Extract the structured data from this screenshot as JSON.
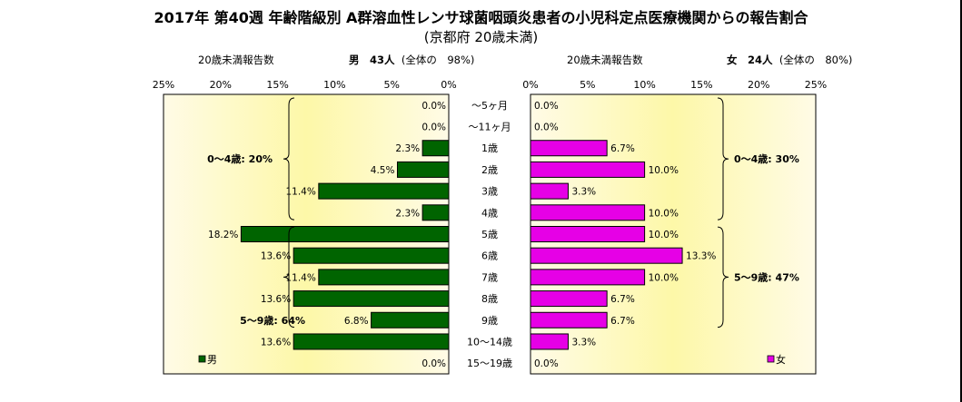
{
  "title": "2017年 第40週 年齢階級別 A群溶血性レンサ球菌咽頭炎患者の小児科定点医療機関からの報告割合",
  "subtitle": "(京都府 20歳未満)",
  "male_header": {
    "report_label": "20歳未満報告数",
    "summary_bold": "男　43人",
    "summary_note": "(全体の　98%)"
  },
  "female_header": {
    "report_label": "20歳未満報告数",
    "summary_bold": "女　24人",
    "summary_note": "(全体の　80%)"
  },
  "colors": {
    "male": "#006400",
    "female": "#e600e6",
    "plot_edge": "#fffbe6",
    "plot_center": "#fdf8a8"
  },
  "chart_data": [
    {
      "type": "bar",
      "orientation": "horizontal",
      "direction": "right-to-left",
      "categories": [
        "～5ヶ月",
        "～11ヶ月",
        "1歳",
        "2歳",
        "3歳",
        "4歳",
        "5歳",
        "6歳",
        "7歳",
        "8歳",
        "9歳",
        "10～14歳",
        "15～19歳"
      ],
      "series": [
        {
          "name": "男",
          "values": [
            0.0,
            0.0,
            2.3,
            4.5,
            11.4,
            2.3,
            18.2,
            13.6,
            11.4,
            13.6,
            6.8,
            13.6,
            0.0
          ]
        }
      ],
      "value_labels": [
        "0.0%",
        "0.0%",
        "2.3%",
        "4.5%",
        "11.4%",
        "2.3%",
        "18.2%",
        "13.6%",
        "11.4%",
        "13.6%",
        "6.8%",
        "13.6%",
        "0.0%"
      ],
      "xlim": [
        0,
        25
      ],
      "xticks": [
        "25%",
        "20%",
        "15%",
        "10%",
        "5%",
        "0%"
      ],
      "annotations": [
        {
          "text": "0～4歳: 20%",
          "from": 0,
          "to": 5
        },
        {
          "text": "5～9歳: 64%",
          "from": 6,
          "to": 10
        }
      ],
      "legend": "bottom-left"
    },
    {
      "type": "bar",
      "orientation": "horizontal",
      "direction": "left-to-right",
      "categories": [
        "～5ヶ月",
        "～11ヶ月",
        "1歳",
        "2歳",
        "3歳",
        "4歳",
        "5歳",
        "6歳",
        "7歳",
        "8歳",
        "9歳",
        "10～14歳",
        "15～19歳"
      ],
      "series": [
        {
          "name": "女",
          "values": [
            0.0,
            0.0,
            6.7,
            10.0,
            3.3,
            10.0,
            10.0,
            13.3,
            10.0,
            6.7,
            6.7,
            3.3,
            0.0
          ]
        }
      ],
      "value_labels": [
        "0.0%",
        "0.0%",
        "6.7%",
        "10.0%",
        "3.3%",
        "10.0%",
        "10.0%",
        "13.3%",
        "10.0%",
        "6.7%",
        "6.7%",
        "3.3%",
        "0.0%"
      ],
      "xlim": [
        0,
        25
      ],
      "xticks": [
        "0%",
        "5%",
        "10%",
        "15%",
        "20%",
        "25%"
      ],
      "annotations": [
        {
          "text": "0～4歳: 30%",
          "from": 0,
          "to": 5
        },
        {
          "text": "5～9歳: 47%",
          "from": 6,
          "to": 10
        }
      ],
      "legend": "bottom-right"
    }
  ]
}
